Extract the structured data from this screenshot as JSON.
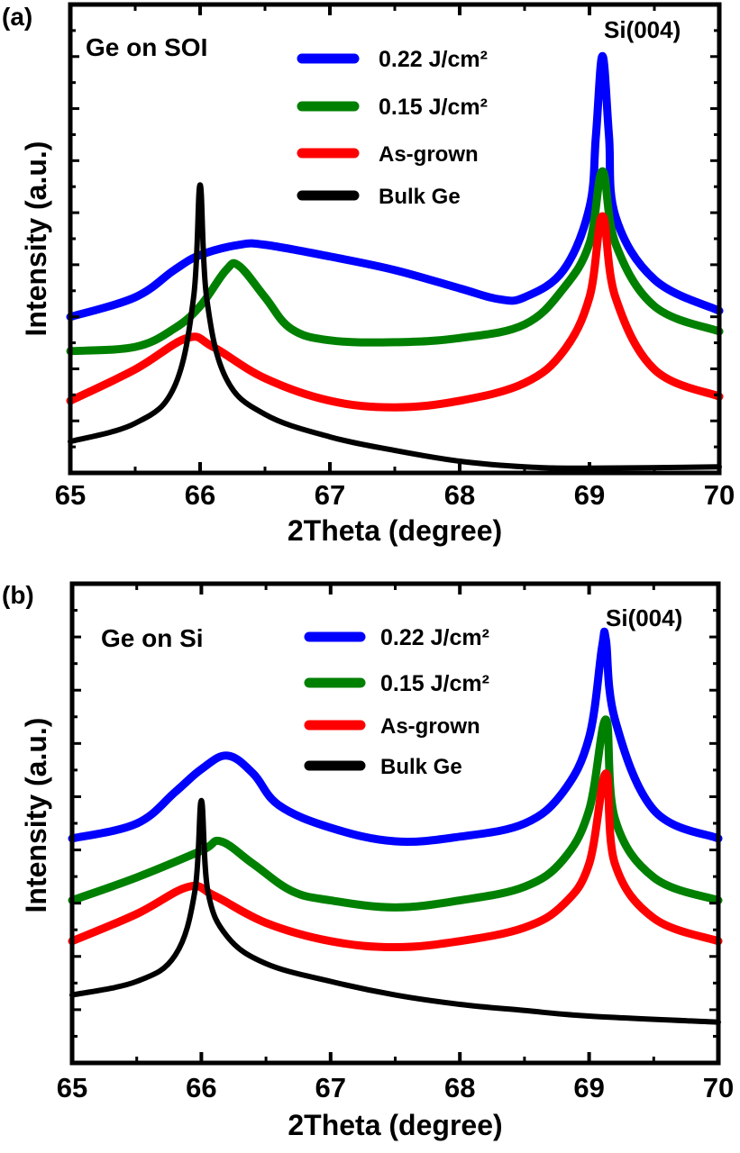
{
  "chart_data": [
    {
      "type": "line",
      "panel_label": "(a)",
      "title": "Ge on SOI",
      "annotation": "Si(004)",
      "xlabel": "2Theta (degree)",
      "ylabel": "Intensity (a.u.)",
      "xlim": [
        65,
        70
      ],
      "ylim": [
        0,
        100
      ],
      "xticks": [
        "65",
        "66",
        "67",
        "68",
        "69",
        "70"
      ],
      "grid": false,
      "legend_position": "top-center",
      "series": [
        {
          "name": "0.22 J/cm²",
          "color": "#0000ff",
          "x": [
            65,
            65.5,
            65.8,
            66,
            66.3,
            66.5,
            67,
            67.5,
            68,
            68.3,
            68.5,
            68.8,
            69,
            69.05,
            69.1,
            69.15,
            69.2,
            69.5,
            70
          ],
          "y": [
            33.3,
            37.5,
            43.3,
            46.5,
            48.7,
            48.7,
            46.2,
            43.3,
            39.4,
            37.1,
            37.5,
            43.3,
            56.7,
            72.1,
            89.0,
            72.1,
            54.8,
            41.3,
            34.6
          ]
        },
        {
          "name": "0.15 J/cm²",
          "color": "#008000",
          "x": [
            65,
            65.5,
            65.8,
            66,
            66.2,
            66.3,
            66.5,
            66.7,
            67,
            67.5,
            68,
            68.5,
            68.8,
            69,
            69.1,
            69.2,
            69.5,
            70
          ],
          "y": [
            26.0,
            26.9,
            30.8,
            35.6,
            43.3,
            44.2,
            37.5,
            30.8,
            28.3,
            27.9,
            28.8,
            31.7,
            39.4,
            49.0,
            64.4,
            49.0,
            35.6,
            30.2
          ]
        },
        {
          "name": "As-grown",
          "color": "#ff0000",
          "x": [
            65,
            65.5,
            65.9,
            66.1,
            66.5,
            67,
            67.5,
            68,
            68.5,
            68.8,
            69,
            69.1,
            69.2,
            69.5,
            70
          ],
          "y": [
            15.4,
            22.1,
            28.8,
            26.9,
            20.2,
            15.4,
            14.0,
            15.4,
            19.2,
            26.0,
            37.5,
            54.8,
            37.5,
            22.1,
            16.3
          ]
        },
        {
          "name": "Bulk Ge",
          "color": "#000000",
          "x": [
            65,
            65.5,
            65.8,
            65.95,
            66,
            66.05,
            66.2,
            66.5,
            67,
            67.5,
            68,
            68.5,
            69,
            70
          ],
          "y": [
            6.7,
            10.6,
            18.3,
            37.5,
            61.5,
            37.5,
            20.2,
            12.5,
            7.7,
            4.8,
            2.5,
            1.3,
            1.0,
            1.3
          ]
        }
      ]
    },
    {
      "type": "line",
      "panel_label": "(b)",
      "title": "Ge on Si",
      "annotation": "Si(004)",
      "xlabel": "2Theta (degree)",
      "ylabel": "Intensity (a.u.)",
      "xlim": [
        65,
        70
      ],
      "ylim": [
        -2.3,
        100
      ],
      "xticks": [
        "65",
        "66",
        "67",
        "68",
        "69",
        "70"
      ],
      "grid": false,
      "legend_position": "top-center",
      "series": [
        {
          "name": "0.22 J/cm²",
          "color": "#0000ff",
          "x": [
            65,
            65.5,
            65.8,
            66,
            66.2,
            66.4,
            66.6,
            67,
            67.5,
            68,
            68.5,
            68.8,
            69,
            69.1,
            69.13,
            69.2,
            69.5,
            70
          ],
          "y": [
            45.6,
            48.8,
            55.6,
            60.4,
            63.3,
            59.5,
            52.7,
            47.9,
            45.0,
            46.0,
            48.8,
            55.6,
            67.2,
            86.5,
            88.0,
            71.0,
            51.7,
            45.6
          ]
        },
        {
          "name": "0.15 J/cm²",
          "color": "#008000",
          "x": [
            65,
            65.5,
            66,
            66.15,
            66.4,
            66.7,
            67,
            67.5,
            68,
            68.5,
            68.8,
            69,
            69.13,
            69.2,
            69.5,
            70
          ],
          "y": [
            32.4,
            37.3,
            43.0,
            45.0,
            40.2,
            34.4,
            32.4,
            30.9,
            32.4,
            35.3,
            41.1,
            51.7,
            71.0,
            49.8,
            37.3,
            32.4
          ]
        },
        {
          "name": "As-grown",
          "color": "#ff0000",
          "x": [
            65,
            65.5,
            65.9,
            66.1,
            66.5,
            67,
            67.5,
            68,
            68.5,
            68.8,
            69,
            69.13,
            69.2,
            69.5,
            70
          ],
          "y": [
            23.7,
            29.5,
            35.3,
            33.4,
            27.6,
            23.7,
            22.4,
            23.7,
            26.6,
            31.5,
            40.2,
            59.5,
            40.2,
            28.6,
            23.7
          ]
        },
        {
          "name": "Bulk Ge",
          "color": "#000000",
          "x": [
            65,
            65.5,
            65.8,
            65.95,
            66,
            66.05,
            66.2,
            66.5,
            67,
            67.5,
            68,
            68.5,
            69,
            70
          ],
          "y": [
            12.2,
            15.1,
            20.8,
            34.4,
            53.7,
            34.4,
            24.7,
            18.9,
            15.1,
            12.2,
            10.2,
            8.9,
            7.7,
            6.4
          ]
        }
      ]
    }
  ]
}
